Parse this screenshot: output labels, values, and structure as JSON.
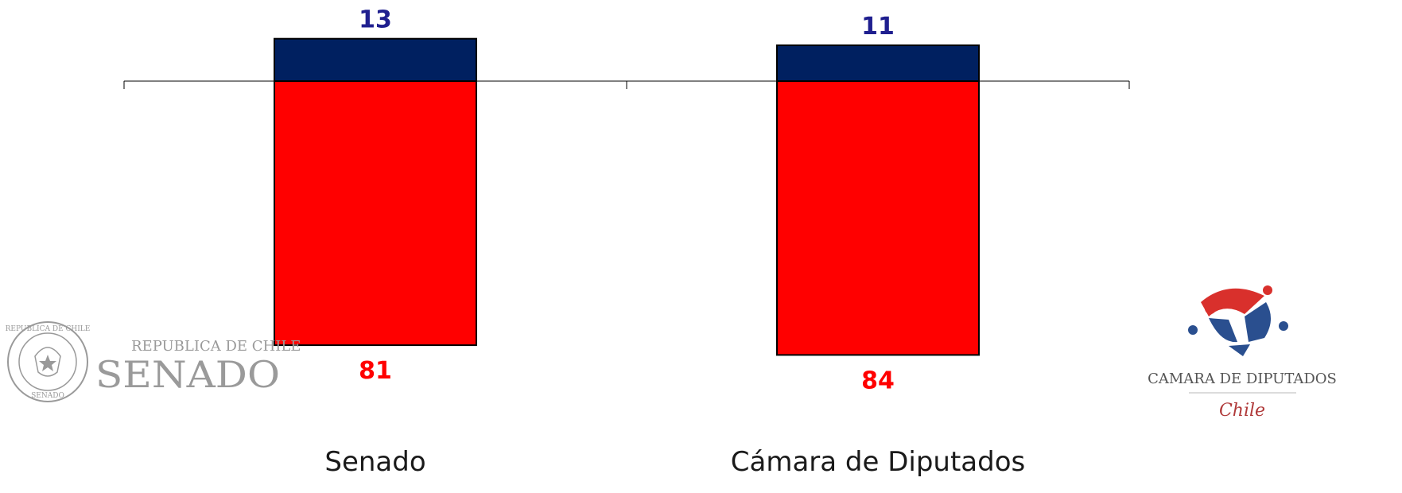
{
  "chart_data": {
    "type": "bar",
    "stacking": "diverging",
    "categories": [
      "Senado",
      "Cámara de Diputados"
    ],
    "series": [
      {
        "values": [
          13,
          11
        ],
        "color": "#002060",
        "direction": "up"
      },
      {
        "values": [
          81,
          84
        ],
        "color": "#ff0000",
        "direction": "down"
      }
    ],
    "label_colors": [
      "#1f1f8f",
      "#ff0000"
    ],
    "grid": false,
    "legend": "none"
  },
  "logos": {
    "senado": {
      "seal_text_top": "REPUBLICA DE CHILE",
      "seal_text_bottom": "SENADO",
      "line1": "REPUBLICA DE CHILE",
      "line2": "SENADO",
      "color": "#9a9a9a"
    },
    "camara": {
      "line1": "CAMARA DE DIPUTADOS",
      "line2": "Chile",
      "star_colors": [
        "#d9302c",
        "#2a4f8f"
      ],
      "text_color": "#555555",
      "script_color": "#b03a3a"
    }
  }
}
